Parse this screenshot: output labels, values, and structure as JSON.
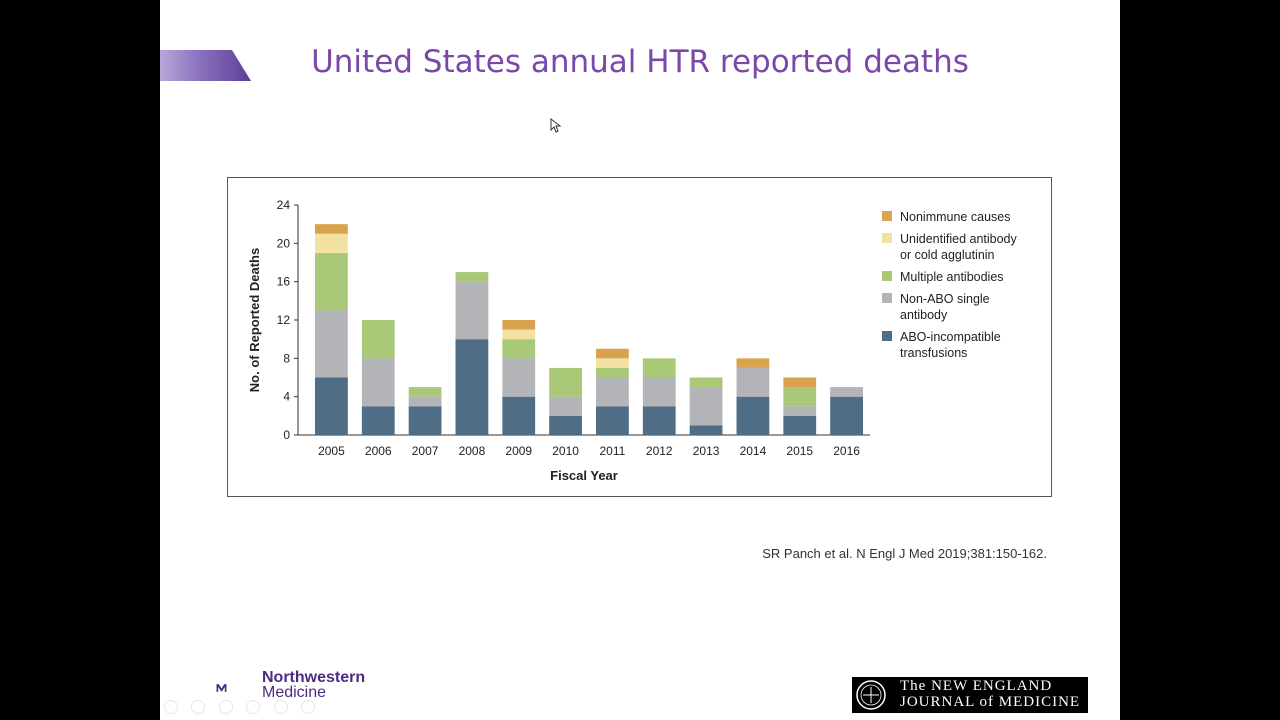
{
  "slide": {
    "title": "United States annual HTR reported deaths",
    "citation": "SR Panch et al. N Engl J Med 2019;381:150-162.",
    "logos": {
      "northwestern_line1": "Northwestern",
      "northwestern_line2": "Medicine",
      "nejm_line1": "The NEW ENGLAND",
      "nejm_line2": "JOURNAL of MEDICINE"
    }
  },
  "chart_data": {
    "type": "bar",
    "stacked": true,
    "title": "",
    "xlabel": "Fiscal Year",
    "ylabel": "No. of Reported Deaths",
    "ylim": [
      0,
      24
    ],
    "yticks": [
      0,
      4,
      8,
      12,
      16,
      20,
      24
    ],
    "grid": false,
    "legend_position": "right",
    "categories": [
      "2005",
      "2006",
      "2007",
      "2008",
      "2009",
      "2010",
      "2011",
      "2012",
      "2013",
      "2014",
      "2015",
      "2016"
    ],
    "series": [
      {
        "name": "ABO-incompatible transfusions",
        "color": "#4f6d85",
        "values": [
          6,
          3,
          3,
          10,
          4,
          2,
          3,
          3,
          1,
          4,
          2,
          4
        ]
      },
      {
        "name": "Non-ABO single antibody",
        "color": "#b3b4b7",
        "values": [
          7,
          5,
          1,
          6,
          4,
          2,
          3,
          3,
          4,
          3,
          1,
          1
        ]
      },
      {
        "name": "Multiple antibodies",
        "color": "#a9c978",
        "values": [
          6,
          4,
          1,
          1,
          2,
          3,
          1,
          2,
          1,
          0,
          2,
          0
        ]
      },
      {
        "name": "Unidentified antibody or cold agglutinin",
        "color": "#f3e1a1",
        "values": [
          2,
          0,
          0,
          0,
          1,
          0,
          1,
          0,
          0,
          0,
          0,
          0
        ]
      },
      {
        "name": "Nonimmune causes",
        "color": "#d9a24e",
        "values": [
          1,
          0,
          0,
          0,
          1,
          0,
          1,
          0,
          0,
          1,
          1,
          0
        ]
      }
    ],
    "legend": [
      {
        "lines": [
          "Nonimmune causes"
        ],
        "color": "#d9a24e"
      },
      {
        "lines": [
          "Unidentified antibody",
          "or cold agglutinin"
        ],
        "color": "#f3e1a1"
      },
      {
        "lines": [
          "Multiple antibodies"
        ],
        "color": "#a9c978"
      },
      {
        "lines": [
          "Non-ABO single",
          "antibody"
        ],
        "color": "#b3b4b7"
      },
      {
        "lines": [
          "ABO-incompatible",
          "transfusions"
        ],
        "color": "#4f6d85"
      }
    ]
  }
}
